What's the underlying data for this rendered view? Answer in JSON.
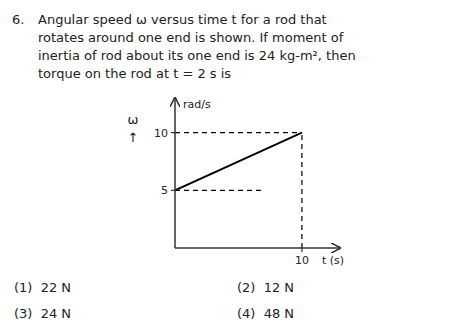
{
  "chart_data": {
    "type": "line",
    "xlabel": "t (s)",
    "ylabel": "ω",
    "annotations": [
      "6.",
      "Angular speed ω versus time t for a rod that",
      "rotates around one end is shown. If moment of",
      "inertia of rod about its one end is 24 kg-m², then",
      "torque on the rod at t = 2 s is",
      "(1)  22 N",
      "(2)  12 N",
      "(3)  24 N",
      "(4)  48 N",
      "rad/s",
      "↑"
    ],
    "series": [
      {
        "x": [
          0,
          10
        ],
        "values": [
          5,
          10
        ],
        "color": "#000000",
        "line_style": "solid"
      },
      {
        "x": [
          0,
          10
        ],
        "values": [
          10,
          10
        ],
        "color": "#000000",
        "line_style": "dashed"
      },
      {
        "x": [
          10,
          10
        ],
        "values": [
          0,
          10
        ],
        "color": "#000000",
        "line_style": "dashed"
      },
      {
        "x": [
          0,
          7
        ],
        "values": [
          5,
          5
        ],
        "color": "#000000",
        "line_style": "dashed"
      }
    ],
    "xlim": [
      0,
      13
    ],
    "ylim": [
      0,
      13
    ],
    "xticks": [
      10
    ],
    "yticks": [
      5,
      10
    ],
    "grid": false
  }
}
